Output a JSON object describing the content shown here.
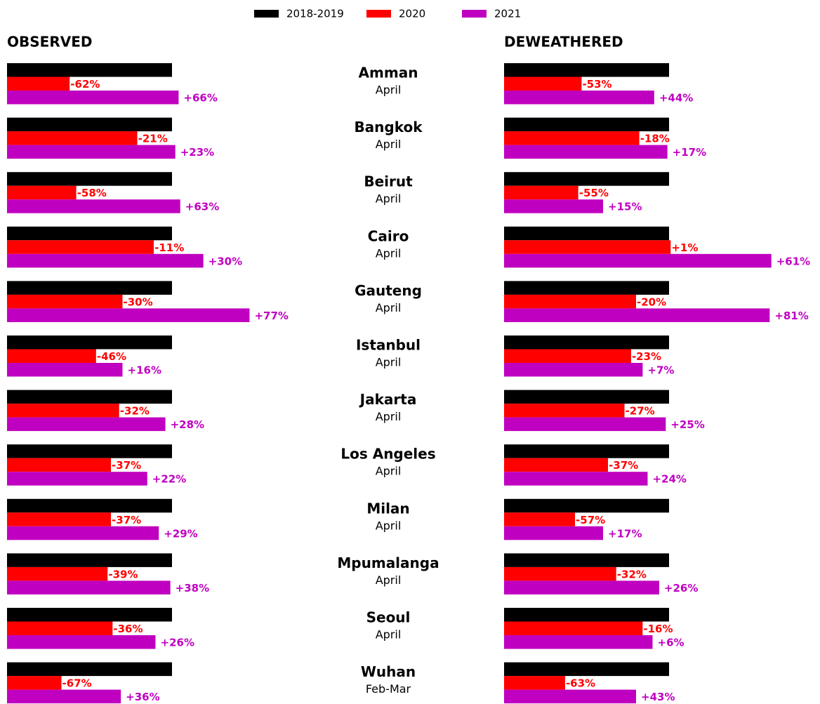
{
  "chart_data": [
    {
      "type": "bar",
      "title": "OBSERVED",
      "categories": [
        "Amman",
        "Bangkok",
        "Beirut",
        "Cairo",
        "Gauteng",
        "Istanbul",
        "Jakarta",
        "Los Angeles",
        "Milan",
        "Mpumalanga",
        "Seoul",
        "Wuhan"
      ],
      "category_periods": [
        "April",
        "April",
        "April",
        "April",
        "April",
        "April",
        "April",
        "April",
        "April",
        "April",
        "April",
        "Feb-Mar"
      ],
      "series": [
        {
          "name": "2018-2019",
          "color": "#000000",
          "values": [
            100,
            100,
            100,
            100,
            100,
            100,
            100,
            100,
            100,
            100,
            100,
            100
          ]
        },
        {
          "name": "2020",
          "color": "#ff0000",
          "values": [
            -62,
            -21,
            -58,
            -11,
            -30,
            -46,
            -32,
            -37,
            -37,
            -39,
            -36,
            -67
          ],
          "value_labels": [
            "-62%",
            "-21%",
            "-58%",
            "-11%",
            "-30%",
            "-46%",
            "-32%",
            "-37%",
            "-37%",
            "-39%",
            "-36%",
            "-67%"
          ]
        },
        {
          "name": "2021",
          "color": "#c000c0",
          "values": [
            66,
            23,
            63,
            30,
            77,
            16,
            28,
            22,
            29,
            38,
            26,
            36
          ],
          "value_labels": [
            "+66%",
            "+23%",
            "+63%",
            "+30%",
            "+77%",
            "+16%",
            "+28%",
            "+22%",
            "+29%",
            "+38%",
            "+26%",
            "+36%"
          ]
        }
      ]
    },
    {
      "type": "bar",
      "title": "DEWEATHERED",
      "series": [
        {
          "color": "#000000",
          "values": [
            100,
            100,
            100,
            100,
            100,
            100,
            100,
            100,
            100,
            100,
            100,
            100
          ]
        },
        {
          "color": "#ff0000",
          "values": [
            -53,
            -18,
            -55,
            1,
            -20,
            -23,
            -27,
            -37,
            -57,
            -32,
            -16,
            -63
          ],
          "value_labels": [
            "-53%",
            "-18%",
            "-55%",
            "+1%",
            "-20%",
            "-23%",
            "-27%",
            "-37%",
            "-57%",
            "-32%",
            "-16%",
            "-63%"
          ]
        },
        {
          "color": "#c000c0",
          "values": [
            44,
            17,
            15,
            61,
            81,
            7,
            25,
            24,
            17,
            26,
            6,
            43
          ],
          "value_labels": [
            "+44%",
            "+17%",
            "+15%",
            "+61%",
            "+81%",
            "+7%",
            "+25%",
            "+24%",
            "+17%",
            "+26%",
            "+6%",
            "+43%"
          ]
        }
      ]
    }
  ]
}
